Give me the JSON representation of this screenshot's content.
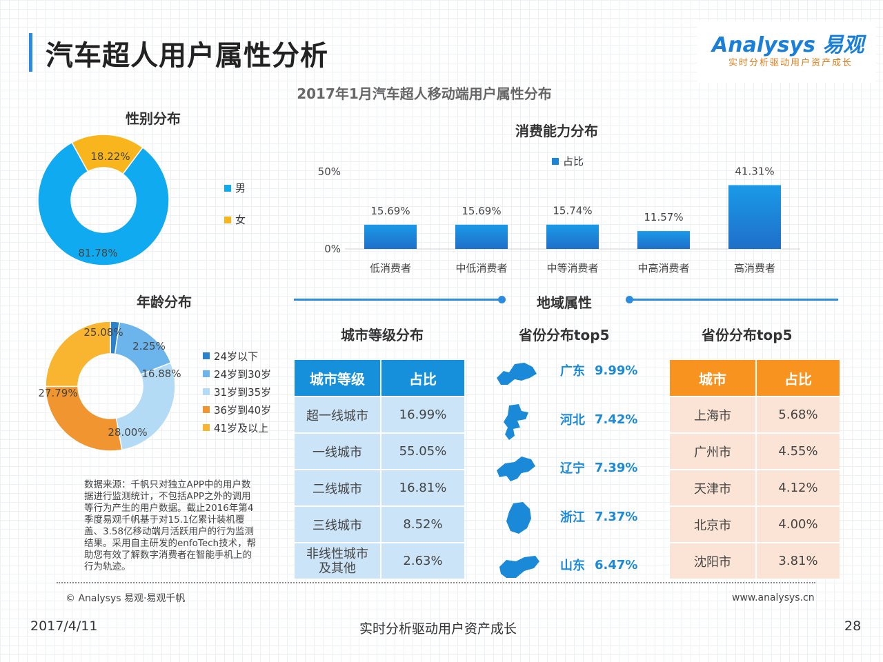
{
  "header": {
    "title": "汽车超人用户属性分析",
    "logo_text": "Analysys 易观",
    "logo_tagline": "实时分析驱动用户资产成长",
    "subtitle": "2017年1月汽车超人移动端用户属性分布"
  },
  "colors": {
    "accent": "#2a8be0",
    "male": "#10aaf0",
    "female": "#f8b51c",
    "city_header": "#1790db",
    "city_cell": "#cce4f7",
    "prov_header": "#f7931e",
    "prov_cell": "#fbe4d5",
    "bar": "#1b86d8"
  },
  "gender": {
    "title": "性别分布",
    "legend": [
      {
        "name": "男",
        "color": "#10aaf0"
      },
      {
        "name": "女",
        "color": "#f8b51c"
      }
    ]
  },
  "consumption": {
    "title": "消费能力分布",
    "legend": "占比"
  },
  "age": {
    "title": "年龄分布",
    "legend": [
      {
        "name": "24岁以下",
        "color": "#2b82cc"
      },
      {
        "name": "24岁到30岁",
        "color": "#6cb4ec"
      },
      {
        "name": "31岁到35岁",
        "color": "#b3dbf6"
      },
      {
        "name": "36岁到40岁",
        "color": "#f0952f"
      },
      {
        "name": "41岁及以上",
        "color": "#f9b52f"
      }
    ]
  },
  "region": {
    "title": "地域属性",
    "city_title": "城市等级分布",
    "city_headers": [
      "城市等级",
      "占比"
    ],
    "city_rows": [
      [
        "超一线城市",
        "16.99%"
      ],
      [
        "一线城市",
        "55.05%"
      ],
      [
        "二线城市",
        "16.81%"
      ],
      [
        "三线城市",
        "8.52%"
      ],
      [
        "非线性城市\n及其他",
        "2.63%"
      ]
    ],
    "prov_title": "省份分布top5",
    "provinces": [
      {
        "name": "广东",
        "value": "9.99%"
      },
      {
        "name": "河北",
        "value": "7.42%"
      },
      {
        "name": "辽宁",
        "value": "7.39%"
      },
      {
        "name": "浙江",
        "value": "7.37%"
      },
      {
        "name": "山东",
        "value": "6.47%"
      }
    ],
    "city_top_title": "省份分布top5",
    "city_top_headers": [
      "城市",
      "占比"
    ],
    "city_top_rows": [
      [
        "上海市",
        "5.68%"
      ],
      [
        "广州市",
        "4.55%"
      ],
      [
        "天津市",
        "4.12%"
      ],
      [
        "北京市",
        "4.00%"
      ],
      [
        "沈阳市",
        "3.81%"
      ]
    ]
  },
  "source_note": "数据来源：千帆只对独立APP中的用户数据进行监测统计，不包括APP之外的调用等行为产生的用户数据。截止2016年第4季度易观千帆基于对15.1亿累计装机覆盖、3.58亿移动端月活跃用户的行为监测结果。采用自主研发的enfoTech技术，帮助您有效了解数字消费者在智能手机上的行为轨迹。",
  "footer": {
    "copyright": "© Analysys 易观·易观千帆",
    "url": "www.analysys.cn",
    "date": "2017/4/11",
    "slogan": "实时分析驱动用户资产成长",
    "page": "28"
  },
  "chart_data": [
    {
      "type": "pie",
      "title": "性别分布",
      "categories": [
        "男",
        "女"
      ],
      "values": [
        81.78,
        18.22
      ],
      "labels": [
        "81.78%",
        "18.22%"
      ]
    },
    {
      "type": "bar",
      "title": "消费能力分布",
      "categories": [
        "低消费者",
        "中低消费者",
        "中等消费者",
        "中高消费者",
        "高消费者"
      ],
      "series": [
        {
          "name": "占比",
          "values": [
            15.69,
            15.69,
            15.74,
            11.57,
            41.31
          ]
        }
      ],
      "labels": [
        "15.69%",
        "15.69%",
        "15.74%",
        "11.57%",
        "41.31%"
      ],
      "yticks": [
        "0%",
        "50%"
      ],
      "ylim": [
        0,
        50
      ]
    },
    {
      "type": "pie",
      "title": "年龄分布",
      "categories": [
        "24岁以下",
        "24岁到30岁",
        "31岁到35岁",
        "36岁到40岁",
        "41岁及以上"
      ],
      "values": [
        2.25,
        16.88,
        28.0,
        27.79,
        25.08
      ],
      "labels": [
        "2.25%",
        "16.88%",
        "28.00%",
        "27.79%",
        "25.08%"
      ]
    }
  ]
}
